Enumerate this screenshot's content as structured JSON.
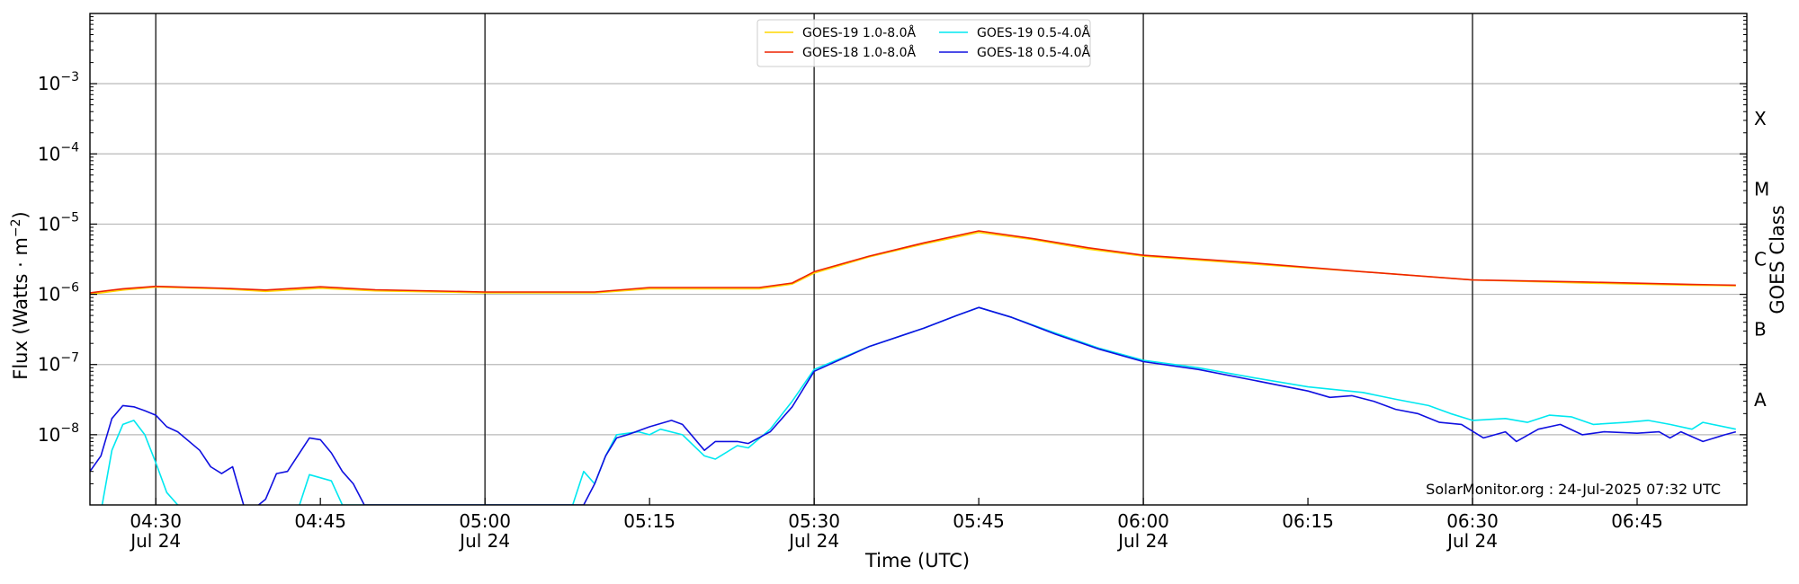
{
  "chart_data": {
    "type": "line",
    "xlabel": "Time (UTC)",
    "ylabel": "Flux (Watts · m",
    "ylabel_sup": "−2",
    "ylabel_close": ")",
    "right_label": "GOES Class",
    "credit": "SolarMonitor.org : 24-Jul-2025 07:32 UTC",
    "x_range": [
      "04:24",
      "06:55"
    ],
    "y_scale": "log",
    "y_range": [
      1e-09,
      0.01
    ],
    "grid": "horizontal",
    "legend_position": "top-center",
    "y_ticks": [
      {
        "value": 1e-08,
        "base": "10",
        "exp": "−8"
      },
      {
        "value": 1e-07,
        "base": "10",
        "exp": "−7"
      },
      {
        "value": 1e-06,
        "base": "10",
        "exp": "−6"
      },
      {
        "value": 1e-05,
        "base": "10",
        "exp": "−5"
      },
      {
        "value": 0.0001,
        "base": "10",
        "exp": "−4"
      },
      {
        "value": 0.001,
        "base": "10",
        "exp": "−3"
      }
    ],
    "x_ticks": [
      {
        "time": "04:30",
        "label": "04:30",
        "sub": "Jul 24",
        "vline": true
      },
      {
        "time": "04:45",
        "label": "04:45",
        "sub": "",
        "vline": false
      },
      {
        "time": "05:00",
        "label": "05:00",
        "sub": "Jul 24",
        "vline": true
      },
      {
        "time": "05:15",
        "label": "05:15",
        "sub": "",
        "vline": false
      },
      {
        "time": "05:30",
        "label": "05:30",
        "sub": "Jul 24",
        "vline": true
      },
      {
        "time": "05:45",
        "label": "05:45",
        "sub": "",
        "vline": false
      },
      {
        "time": "06:00",
        "label": "06:00",
        "sub": "Jul 24",
        "vline": true
      },
      {
        "time": "06:15",
        "label": "06:15",
        "sub": "",
        "vline": false
      },
      {
        "time": "06:30",
        "label": "06:30",
        "sub": "Jul 24",
        "vline": true
      },
      {
        "time": "06:45",
        "label": "06:45",
        "sub": "",
        "vline": false
      }
    ],
    "goes_classes": [
      {
        "label": "A",
        "value": 1e-08
      },
      {
        "label": "B",
        "value": 1e-07
      },
      {
        "label": "C",
        "value": 1e-06
      },
      {
        "label": "M",
        "value": 1e-05
      },
      {
        "label": "X",
        "value": 0.0001
      }
    ],
    "series": [
      {
        "name": "GOES-19 1.0-8.0Å",
        "color": "#ffd700",
        "points": [
          [
            "04:24",
            1e-06
          ],
          [
            "04:27",
            1.15e-06
          ],
          [
            "04:30",
            1.27e-06
          ],
          [
            "04:36",
            1.2e-06
          ],
          [
            "04:40",
            1.1e-06
          ],
          [
            "04:45",
            1.22e-06
          ],
          [
            "04:50",
            1.12e-06
          ],
          [
            "05:00",
            1.05e-06
          ],
          [
            "05:10",
            1.05e-06
          ],
          [
            "05:15",
            1.2e-06
          ],
          [
            "05:25",
            1.2e-06
          ],
          [
            "05:28",
            1.4e-06
          ],
          [
            "05:30",
            2e-06
          ],
          [
            "05:35",
            3.4e-06
          ],
          [
            "05:40",
            5.2e-06
          ],
          [
            "05:45",
            7.6e-06
          ],
          [
            "05:50",
            6e-06
          ],
          [
            "05:55",
            4.4e-06
          ],
          [
            "06:00",
            3.5e-06
          ],
          [
            "06:10",
            2.7e-06
          ],
          [
            "06:20",
            2.1e-06
          ],
          [
            "06:30",
            1.6e-06
          ],
          [
            "06:40",
            1.45e-06
          ],
          [
            "06:50",
            1.35e-06
          ],
          [
            "06:54",
            1.32e-06
          ]
        ]
      },
      {
        "name": "GOES-18 1.0-8.0Å",
        "color": "#ee2200",
        "points": [
          [
            "04:24",
            1.05e-06
          ],
          [
            "04:27",
            1.2e-06
          ],
          [
            "04:30",
            1.3e-06
          ],
          [
            "04:36",
            1.22e-06
          ],
          [
            "04:40",
            1.15e-06
          ],
          [
            "04:45",
            1.28e-06
          ],
          [
            "04:50",
            1.16e-06
          ],
          [
            "05:00",
            1.08e-06
          ],
          [
            "05:10",
            1.08e-06
          ],
          [
            "05:15",
            1.25e-06
          ],
          [
            "05:25",
            1.25e-06
          ],
          [
            "05:28",
            1.45e-06
          ],
          [
            "05:30",
            2.1e-06
          ],
          [
            "05:35",
            3.5e-06
          ],
          [
            "05:40",
            5.4e-06
          ],
          [
            "05:45",
            8e-06
          ],
          [
            "05:50",
            6.2e-06
          ],
          [
            "05:55",
            4.6e-06
          ],
          [
            "06:00",
            3.6e-06
          ],
          [
            "06:10",
            2.8e-06
          ],
          [
            "06:20",
            2.1e-06
          ],
          [
            "06:30",
            1.6e-06
          ],
          [
            "06:40",
            1.5e-06
          ],
          [
            "06:50",
            1.38e-06
          ],
          [
            "06:54",
            1.35e-06
          ]
        ]
      },
      {
        "name": "GOES-19 0.5-4.0Å",
        "color": "#00e8f0",
        "points": [
          [
            "04:24",
            5e-10
          ],
          [
            "04:25",
            8e-10
          ],
          [
            "04:26",
            6e-09
          ],
          [
            "04:27",
            1.4e-08
          ],
          [
            "04:28",
            1.6e-08
          ],
          [
            "04:29",
            1e-08
          ],
          [
            "04:30",
            4e-09
          ],
          [
            "04:31",
            1.5e-09
          ],
          [
            "04:32",
            1e-09
          ],
          [
            "04:34",
            9e-10
          ],
          [
            "04:40",
            9e-10
          ],
          [
            "04:43",
            9e-10
          ],
          [
            "04:44",
            2.7e-09
          ],
          [
            "04:46",
            2.2e-09
          ],
          [
            "04:47",
            1e-09
          ],
          [
            "04:49",
            1e-09
          ],
          [
            "05:00",
            1e-09
          ],
          [
            "05:08",
            1e-09
          ],
          [
            "05:09",
            3e-09
          ],
          [
            "05:10",
            2e-09
          ],
          [
            "05:11",
            5e-09
          ],
          [
            "05:12",
            1e-08
          ],
          [
            "05:14",
            1.1e-08
          ],
          [
            "05:15",
            1e-08
          ],
          [
            "05:16",
            1.2e-08
          ],
          [
            "05:18",
            1e-08
          ],
          [
            "05:20",
            5e-09
          ],
          [
            "05:21",
            4.5e-09
          ],
          [
            "05:23",
            7e-09
          ],
          [
            "05:24",
            6.5e-09
          ],
          [
            "05:26",
            1.2e-08
          ],
          [
            "05:28",
            3e-08
          ],
          [
            "05:30",
            8.5e-08
          ],
          [
            "05:35",
            1.8e-07
          ],
          [
            "05:40",
            3.3e-07
          ],
          [
            "05:43",
            5e-07
          ],
          [
            "05:45",
            6.5e-07
          ],
          [
            "05:48",
            4.7e-07
          ],
          [
            "05:52",
            2.8e-07
          ],
          [
            "05:56",
            1.7e-07
          ],
          [
            "06:00",
            1.15e-07
          ],
          [
            "06:05",
            9e-08
          ],
          [
            "06:10",
            6.5e-08
          ],
          [
            "06:15",
            4.8e-08
          ],
          [
            "06:20",
            4e-08
          ],
          [
            "06:23",
            3.2e-08
          ],
          [
            "06:26",
            2.6e-08
          ],
          [
            "06:28",
            2e-08
          ],
          [
            "06:30",
            1.6e-08
          ],
          [
            "06:33",
            1.7e-08
          ],
          [
            "06:35",
            1.5e-08
          ],
          [
            "06:37",
            1.9e-08
          ],
          [
            "06:39",
            1.8e-08
          ],
          [
            "06:41",
            1.4e-08
          ],
          [
            "06:44",
            1.5e-08
          ],
          [
            "06:46",
            1.6e-08
          ],
          [
            "06:48",
            1.4e-08
          ],
          [
            "06:50",
            1.2e-08
          ],
          [
            "06:51",
            1.5e-08
          ],
          [
            "06:54",
            1.2e-08
          ]
        ]
      },
      {
        "name": "GOES-18 0.5-4.0Å",
        "color": "#1010e0",
        "points": [
          [
            "04:24",
            3e-09
          ],
          [
            "04:25",
            5e-09
          ],
          [
            "04:26",
            1.7e-08
          ],
          [
            "04:27",
            2.6e-08
          ],
          [
            "04:28",
            2.5e-08
          ],
          [
            "04:29",
            2.2e-08
          ],
          [
            "04:30",
            1.9e-08
          ],
          [
            "04:31",
            1.3e-08
          ],
          [
            "04:32",
            1.1e-08
          ],
          [
            "04:34",
            6e-09
          ],
          [
            "04:35",
            3.5e-09
          ],
          [
            "04:36",
            2.8e-09
          ],
          [
            "04:37",
            3.5e-09
          ],
          [
            "04:38",
            1e-09
          ],
          [
            "04:39",
            9e-10
          ],
          [
            "04:40",
            1.2e-09
          ],
          [
            "04:41",
            2.8e-09
          ],
          [
            "04:42",
            3e-09
          ],
          [
            "04:44",
            9e-09
          ],
          [
            "04:45",
            8.5e-09
          ],
          [
            "04:46",
            5.5e-09
          ],
          [
            "04:47",
            3e-09
          ],
          [
            "04:48",
            2e-09
          ],
          [
            "04:49",
            1e-09
          ],
          [
            "05:00",
            1e-09
          ],
          [
            "05:09",
            1e-09
          ],
          [
            "05:10",
            2e-09
          ],
          [
            "05:11",
            5e-09
          ],
          [
            "05:12",
            9e-09
          ],
          [
            "05:13",
            1e-08
          ],
          [
            "05:15",
            1.3e-08
          ],
          [
            "05:17",
            1.6e-08
          ],
          [
            "05:18",
            1.4e-08
          ],
          [
            "05:20",
            6e-09
          ],
          [
            "05:21",
            8e-09
          ],
          [
            "05:23",
            8e-09
          ],
          [
            "05:24",
            7.5e-09
          ],
          [
            "05:26",
            1.1e-08
          ],
          [
            "05:28",
            2.5e-08
          ],
          [
            "05:30",
            8e-08
          ],
          [
            "05:35",
            1.8e-07
          ],
          [
            "05:40",
            3.3e-07
          ],
          [
            "05:43",
            5e-07
          ],
          [
            "05:45",
            6.5e-07
          ],
          [
            "05:48",
            4.7e-07
          ],
          [
            "05:52",
            2.7e-07
          ],
          [
            "05:56",
            1.65e-07
          ],
          [
            "06:00",
            1.1e-07
          ],
          [
            "06:05",
            8.5e-08
          ],
          [
            "06:10",
            6e-08
          ],
          [
            "06:15",
            4.2e-08
          ],
          [
            "06:17",
            3.4e-08
          ],
          [
            "06:19",
            3.6e-08
          ],
          [
            "06:21",
            3e-08
          ],
          [
            "06:23",
            2.3e-08
          ],
          [
            "06:25",
            2e-08
          ],
          [
            "06:27",
            1.5e-08
          ],
          [
            "06:29",
            1.4e-08
          ],
          [
            "06:31",
            9e-09
          ],
          [
            "06:33",
            1.1e-08
          ],
          [
            "06:34",
            8e-09
          ],
          [
            "06:36",
            1.2e-08
          ],
          [
            "06:38",
            1.4e-08
          ],
          [
            "06:40",
            1e-08
          ],
          [
            "06:42",
            1.1e-08
          ],
          [
            "06:45",
            1.05e-08
          ],
          [
            "06:47",
            1.1e-08
          ],
          [
            "06:48",
            9e-09
          ],
          [
            "06:49",
            1.1e-08
          ],
          [
            "06:51",
            8e-09
          ],
          [
            "06:53",
            1e-08
          ],
          [
            "06:54",
            1.1e-08
          ]
        ]
      }
    ]
  }
}
